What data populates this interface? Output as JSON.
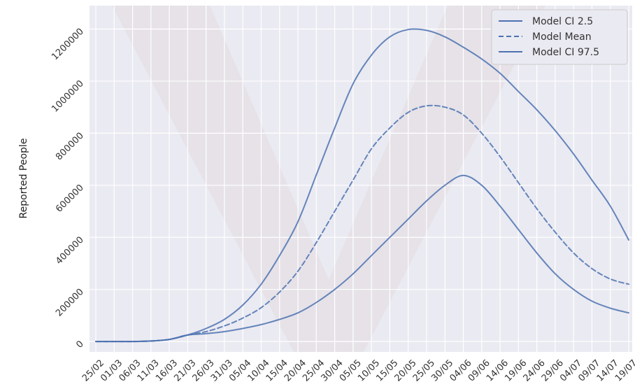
{
  "chart_data": {
    "type": "line",
    "title": "",
    "xlabel": "",
    "ylabel": "Reported People",
    "x": [
      "25/02",
      "01/03",
      "06/03",
      "11/03",
      "16/03",
      "21/03",
      "26/03",
      "31/03",
      "05/04",
      "10/04",
      "15/04",
      "20/04",
      "25/04",
      "30/04",
      "05/05",
      "10/05",
      "15/05",
      "20/05",
      "25/05",
      "30/05",
      "04/06",
      "09/06",
      "14/06",
      "19/06",
      "24/06",
      "29/06",
      "04/07",
      "09/07",
      "14/07",
      "19/07"
    ],
    "ylim": [
      -40000,
      1290000
    ],
    "yticks": [
      0,
      200000,
      400000,
      600000,
      800000,
      1000000,
      1200000
    ],
    "ytick_labels": [
      "0",
      "200000",
      "400000",
      "600000",
      "800000",
      "1000000",
      "1200000"
    ],
    "grid": true,
    "legend_position": "top-right",
    "background_color": "#eaeaf2",
    "series": [
      {
        "name": "Model CI 2.5",
        "color": "#4c72b0",
        "style": "solid",
        "values": [
          0,
          0,
          0,
          2000,
          8000,
          25000,
          30000,
          38000,
          50000,
          65000,
          85000,
          110000,
          150000,
          200000,
          260000,
          330000,
          400000,
          470000,
          540000,
          600000,
          638000,
          600000,
          520000,
          430000,
          340000,
          260000,
          200000,
          155000,
          128000,
          110000
        ]
      },
      {
        "name": "Model Mean",
        "color": "#4c72b0",
        "style": "dashed",
        "values": [
          0,
          0,
          0,
          2000,
          8000,
          25000,
          38000,
          60000,
          90000,
          130000,
          190000,
          270000,
          380000,
          500000,
          620000,
          740000,
          820000,
          880000,
          905000,
          900000,
          870000,
          800000,
          710000,
          610000,
          510000,
          420000,
          340000,
          280000,
          240000,
          220000
        ]
      },
      {
        "name": "Model CI 97.5",
        "color": "#4c72b0",
        "style": "solid",
        "values": [
          0,
          0,
          0,
          2000,
          8000,
          25000,
          50000,
          85000,
          140000,
          220000,
          330000,
          460000,
          640000,
          820000,
          990000,
          1100000,
          1170000,
          1198000,
          1195000,
          1170000,
          1130000,
          1085000,
          1030000,
          960000,
          890000,
          810000,
          720000,
          620000,
          520000,
          390000
        ]
      }
    ]
  }
}
